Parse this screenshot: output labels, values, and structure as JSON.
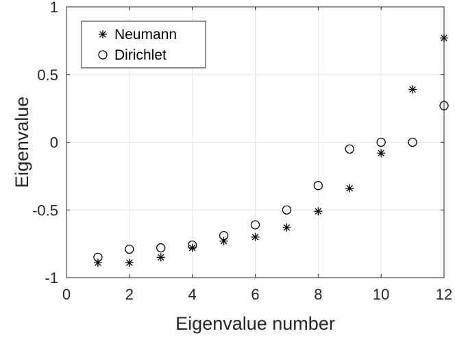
{
  "chart_data": {
    "type": "scatter",
    "title": "",
    "xlabel": "Eigenvalue number",
    "ylabel": "Eigenvalue",
    "xlim": [
      0,
      12
    ],
    "ylim": [
      -1,
      1
    ],
    "xticks": [
      0,
      2,
      4,
      6,
      8,
      10,
      12
    ],
    "yticks": [
      -1,
      -0.5,
      0,
      0.5,
      1
    ],
    "xtick_labels": [
      "0",
      "2",
      "4",
      "6",
      "8",
      "10",
      "12"
    ],
    "ytick_labels": [
      "-1",
      "-0.5",
      "0",
      "0.5",
      "1"
    ],
    "grid": true,
    "legend": {
      "position": "top-left"
    },
    "series": [
      {
        "name": "Neumann",
        "marker": "asterisk",
        "color": "#000000",
        "x": [
          1,
          2,
          3,
          4,
          5,
          6,
          7,
          8,
          9,
          10,
          11,
          12
        ],
        "y": [
          -0.89,
          -0.89,
          -0.85,
          -0.78,
          -0.73,
          -0.7,
          -0.63,
          -0.51,
          -0.34,
          -0.08,
          0.39,
          0.77
        ]
      },
      {
        "name": "Dirichlet",
        "marker": "circle",
        "color": "#000000",
        "x": [
          1,
          2,
          3,
          4,
          5,
          6,
          7,
          8,
          9,
          10,
          11,
          12
        ],
        "y": [
          -0.85,
          -0.79,
          -0.78,
          -0.76,
          -0.69,
          -0.61,
          -0.5,
          -0.32,
          -0.05,
          0.0,
          0.0,
          0.27
        ]
      }
    ]
  }
}
